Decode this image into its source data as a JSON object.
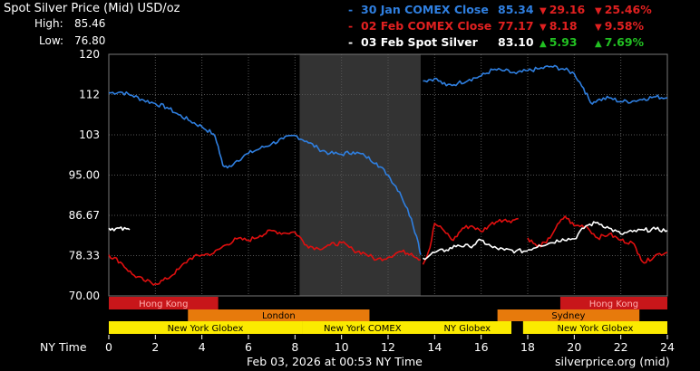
{
  "header": {
    "title": "Spot Silver Price (Mid) USD/oz",
    "high_label": "High:",
    "high_value": "85.46",
    "low_label": "Low:",
    "low_value": "76.80"
  },
  "legend": [
    {
      "name": "30 Jan COMEX Close",
      "price": "85.34",
      "change": "29.16",
      "pct": "25.46%",
      "color": "#2f7fe0",
      "dir": "down",
      "change_color": "#e02020"
    },
    {
      "name": "02 Feb COMEX Close",
      "price": "77.17",
      "change": "8.18",
      "pct": "9.58%",
      "color": "#e02020",
      "dir": "down",
      "change_color": "#e02020"
    },
    {
      "name": "03 Feb Spot Silver",
      "price": "83.10",
      "change": "5.93",
      "pct": "7.69%",
      "color": "#ffffff",
      "dir": "up",
      "change_color": "#22c022"
    }
  ],
  "colors": {
    "blue": "#2f7fe0",
    "red": "#e00f0f",
    "white": "#ffffff",
    "overnight_band": "#333333",
    "session_hongkong": "#c8161a",
    "session_london_sydney": "#e77a0c",
    "session_ny": "#fbea00"
  },
  "chart_data": {
    "type": "line",
    "xlabel": "NY Time",
    "xlim": [
      0,
      24
    ],
    "ylim": [
      70,
      120
    ],
    "yticks": [
      "70.00",
      "78.33",
      "86.67",
      "95.00",
      "103",
      "112",
      "120"
    ],
    "ytick_values": [
      70,
      78.33,
      86.67,
      95,
      103.33,
      111.67,
      120
    ],
    "xticks": [
      "0",
      "2",
      "4",
      "6",
      "8",
      "10",
      "12",
      "14",
      "16",
      "18",
      "20",
      "22",
      "24"
    ],
    "xtick_values": [
      0,
      2,
      4,
      6,
      8,
      10,
      12,
      14,
      16,
      18,
      20,
      22,
      24
    ],
    "shaded_range": [
      8.2,
      13.4
    ],
    "series": [
      {
        "name": "30 Jan COMEX Close",
        "color": "#2f7fe0",
        "segments": [
          [
            [
              0,
              112
            ],
            [
              0.5,
              112.2
            ],
            [
              1,
              111.5
            ],
            [
              1.5,
              110.5
            ],
            [
              2,
              109.8
            ],
            [
              2.5,
              109
            ],
            [
              3,
              107.5
            ],
            [
              3.5,
              106.2
            ],
            [
              4,
              105
            ],
            [
              4.5,
              103.5
            ],
            [
              4.7,
              101
            ],
            [
              4.9,
              97
            ],
            [
              5.1,
              96.5
            ],
            [
              5.5,
              98
            ],
            [
              6,
              99.5
            ],
            [
              6.5,
              100.5
            ],
            [
              7,
              101.5
            ],
            [
              7.5,
              102.5
            ],
            [
              8,
              103.2
            ],
            [
              8.5,
              102
            ],
            [
              9,
              100.5
            ],
            [
              9.5,
              99.5
            ],
            [
              10,
              99.3
            ],
            [
              10.5,
              99.8
            ],
            [
              11,
              99
            ],
            [
              11.5,
              97.5
            ],
            [
              12,
              95
            ],
            [
              12.5,
              91.5
            ],
            [
              13,
              86
            ],
            [
              13.3,
              81
            ],
            [
              13.4,
              78.5
            ]
          ],
          [
            [
              13.5,
              114.5
            ],
            [
              14,
              115
            ],
            [
              14.5,
              113.5
            ],
            [
              15,
              114
            ],
            [
              15.5,
              114.8
            ],
            [
              16,
              115.5
            ],
            [
              16.5,
              116.8
            ],
            [
              17,
              116.6
            ],
            [
              17.5,
              116
            ],
            [
              18,
              116.6
            ],
            [
              18.5,
              117
            ],
            [
              19,
              117.5
            ],
            [
              19.5,
              117
            ],
            [
              20,
              116
            ],
            [
              20.4,
              113
            ],
            [
              20.7,
              110
            ],
            [
              21,
              110.5
            ],
            [
              21.5,
              111
            ],
            [
              22,
              110.2
            ],
            [
              22.5,
              110.3
            ],
            [
              23,
              110.8
            ],
            [
              23.5,
              111.2
            ],
            [
              24,
              111
            ]
          ]
        ]
      },
      {
        "name": "02 Feb COMEX Close",
        "color": "#e00f0f",
        "segments": [
          [
            [
              0,
              78.5
            ],
            [
              0.5,
              77
            ],
            [
              1,
              74.5
            ],
            [
              1.5,
              73.2
            ],
            [
              2,
              72.5
            ],
            [
              2.5,
              73.5
            ],
            [
              3,
              75.5
            ],
            [
              3.5,
              77.8
            ],
            [
              4,
              78.5
            ],
            [
              4.5,
              78.8
            ],
            [
              5,
              80.5
            ],
            [
              5.5,
              81.8
            ],
            [
              6,
              81.5
            ],
            [
              6.5,
              82.5
            ],
            [
              7,
              83.5
            ],
            [
              7.5,
              83
            ],
            [
              8,
              83.2
            ],
            [
              8.5,
              80.5
            ],
            [
              9,
              79.8
            ],
            [
              9.5,
              80.5
            ],
            [
              10,
              81
            ],
            [
              10.5,
              79.5
            ],
            [
              11,
              78.8
            ],
            [
              11.5,
              77.5
            ],
            [
              12,
              78
            ],
            [
              12.5,
              79.2
            ],
            [
              13,
              78.8
            ],
            [
              13.4,
              77.5
            ]
          ],
          [
            [
              13.5,
              76.5
            ],
            [
              13.8,
              80
            ],
            [
              14,
              85
            ],
            [
              14.4,
              83.5
            ],
            [
              14.8,
              81.5
            ],
            [
              15.2,
              84
            ],
            [
              15.6,
              84.5
            ],
            [
              16,
              83.3
            ],
            [
              16.4,
              84.8
            ],
            [
              16.8,
              85.8
            ],
            [
              17.2,
              85.5
            ],
            [
              17.6,
              86
            ]
          ],
          [
            [
              18,
              82
            ],
            [
              18.4,
              80.2
            ],
            [
              18.8,
              81
            ],
            [
              19.2,
              84
            ],
            [
              19.6,
              86.5
            ],
            [
              20,
              84.5
            ],
            [
              20.5,
              84.5
            ],
            [
              21,
              82
            ],
            [
              21.5,
              82.8
            ],
            [
              22,
              81.5
            ],
            [
              22.5,
              81
            ],
            [
              22.8,
              78.5
            ],
            [
              23,
              76.8
            ],
            [
              23.5,
              78.5
            ],
            [
              24,
              79
            ]
          ]
        ]
      },
      {
        "name": "03 Feb Spot Silver",
        "color": "#ffffff",
        "segments": [
          [
            [
              0,
              84
            ],
            [
              0.9,
              83.7
            ]
          ],
          [
            [
              13.5,
              77.8
            ],
            [
              14,
              79
            ],
            [
              14.5,
              79.5
            ],
            [
              15,
              80.5
            ],
            [
              15.5,
              80.2
            ],
            [
              16,
              81.5
            ],
            [
              16.5,
              80
            ],
            [
              17,
              79.5
            ],
            [
              17.5,
              79.3
            ],
            [
              18,
              79.3
            ]
          ],
          [
            [
              18,
              79.5
            ],
            [
              18.5,
              80.5
            ],
            [
              19,
              81
            ],
            [
              19.5,
              81.8
            ],
            [
              20,
              81.8
            ],
            [
              20.5,
              84.5
            ],
            [
              21,
              85.2
            ],
            [
              21.5,
              84
            ],
            [
              22,
              82.8
            ],
            [
              22.5,
              83.3
            ],
            [
              23,
              83.6
            ],
            [
              23.5,
              83.8
            ],
            [
              24,
              83.5
            ]
          ]
        ]
      }
    ]
  },
  "sessions": {
    "row1": [
      {
        "label": "Hong Kong",
        "start": 0,
        "end": 4.7,
        "color": "#c8161a",
        "text_color": "#ffb0b0"
      },
      {
        "label": "Hong Kong",
        "start": 19.4,
        "end": 24,
        "color": "#c8161a",
        "text_color": "#ffb0b0"
      }
    ],
    "row2": [
      {
        "label": "London",
        "start": 3.4,
        "end": 11.2,
        "color": "#e77a0c",
        "text_color": "#000000"
      },
      {
        "label": "Sydney",
        "start": 16.7,
        "end": 22.8,
        "color": "#e77a0c",
        "text_color": "#000000"
      }
    ],
    "row3": [
      {
        "label": "New York Globex",
        "start": 0,
        "end": 8.3,
        "color": "#fbea00",
        "text_color": "#000000"
      },
      {
        "label": "New York COMEX",
        "start": 8.3,
        "end": 13.5,
        "color": "#fbea00",
        "text_color": "#000000"
      },
      {
        "label": "NY Globex",
        "start": 13.5,
        "end": 17.3,
        "color": "#fbea00",
        "text_color": "#000000"
      },
      {
        "label": "New York Globex",
        "start": 17.8,
        "end": 24,
        "color": "#fbea00",
        "text_color": "#000000"
      }
    ]
  },
  "footer": {
    "timestamp": "Feb 03, 2026 at 00:53 NY Time",
    "source": "silverprice.org (mid)"
  }
}
